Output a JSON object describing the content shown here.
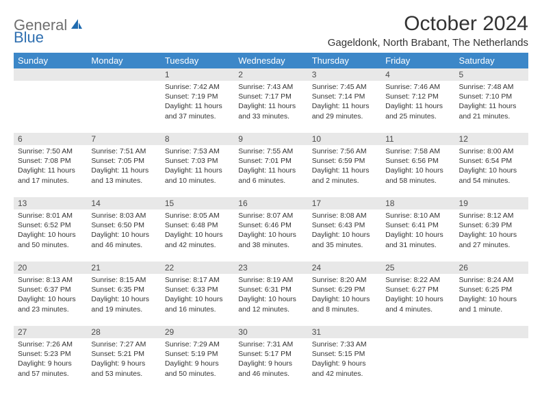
{
  "logo": {
    "general": "General",
    "blue": "Blue",
    "icon_fill": "#1f6bb0"
  },
  "title": "October 2024",
  "location": "Gageldonk, North Brabant, The Netherlands",
  "header_bg": "#3c87c8",
  "header_text_color": "#ffffff",
  "daynum_bg": "#e8e8e8",
  "text_color": "#333333",
  "weekdays": [
    "Sunday",
    "Monday",
    "Tuesday",
    "Wednesday",
    "Thursday",
    "Friday",
    "Saturday"
  ],
  "weeks": [
    [
      null,
      null,
      {
        "n": "1",
        "sunrise": "Sunrise: 7:42 AM",
        "sunset": "Sunset: 7:19 PM",
        "daylight": "Daylight: 11 hours and 37 minutes."
      },
      {
        "n": "2",
        "sunrise": "Sunrise: 7:43 AM",
        "sunset": "Sunset: 7:17 PM",
        "daylight": "Daylight: 11 hours and 33 minutes."
      },
      {
        "n": "3",
        "sunrise": "Sunrise: 7:45 AM",
        "sunset": "Sunset: 7:14 PM",
        "daylight": "Daylight: 11 hours and 29 minutes."
      },
      {
        "n": "4",
        "sunrise": "Sunrise: 7:46 AM",
        "sunset": "Sunset: 7:12 PM",
        "daylight": "Daylight: 11 hours and 25 minutes."
      },
      {
        "n": "5",
        "sunrise": "Sunrise: 7:48 AM",
        "sunset": "Sunset: 7:10 PM",
        "daylight": "Daylight: 11 hours and 21 minutes."
      }
    ],
    [
      {
        "n": "6",
        "sunrise": "Sunrise: 7:50 AM",
        "sunset": "Sunset: 7:08 PM",
        "daylight": "Daylight: 11 hours and 17 minutes."
      },
      {
        "n": "7",
        "sunrise": "Sunrise: 7:51 AM",
        "sunset": "Sunset: 7:05 PM",
        "daylight": "Daylight: 11 hours and 13 minutes."
      },
      {
        "n": "8",
        "sunrise": "Sunrise: 7:53 AM",
        "sunset": "Sunset: 7:03 PM",
        "daylight": "Daylight: 11 hours and 10 minutes."
      },
      {
        "n": "9",
        "sunrise": "Sunrise: 7:55 AM",
        "sunset": "Sunset: 7:01 PM",
        "daylight": "Daylight: 11 hours and 6 minutes."
      },
      {
        "n": "10",
        "sunrise": "Sunrise: 7:56 AM",
        "sunset": "Sunset: 6:59 PM",
        "daylight": "Daylight: 11 hours and 2 minutes."
      },
      {
        "n": "11",
        "sunrise": "Sunrise: 7:58 AM",
        "sunset": "Sunset: 6:56 PM",
        "daylight": "Daylight: 10 hours and 58 minutes."
      },
      {
        "n": "12",
        "sunrise": "Sunrise: 8:00 AM",
        "sunset": "Sunset: 6:54 PM",
        "daylight": "Daylight: 10 hours and 54 minutes."
      }
    ],
    [
      {
        "n": "13",
        "sunrise": "Sunrise: 8:01 AM",
        "sunset": "Sunset: 6:52 PM",
        "daylight": "Daylight: 10 hours and 50 minutes."
      },
      {
        "n": "14",
        "sunrise": "Sunrise: 8:03 AM",
        "sunset": "Sunset: 6:50 PM",
        "daylight": "Daylight: 10 hours and 46 minutes."
      },
      {
        "n": "15",
        "sunrise": "Sunrise: 8:05 AM",
        "sunset": "Sunset: 6:48 PM",
        "daylight": "Daylight: 10 hours and 42 minutes."
      },
      {
        "n": "16",
        "sunrise": "Sunrise: 8:07 AM",
        "sunset": "Sunset: 6:46 PM",
        "daylight": "Daylight: 10 hours and 38 minutes."
      },
      {
        "n": "17",
        "sunrise": "Sunrise: 8:08 AM",
        "sunset": "Sunset: 6:43 PM",
        "daylight": "Daylight: 10 hours and 35 minutes."
      },
      {
        "n": "18",
        "sunrise": "Sunrise: 8:10 AM",
        "sunset": "Sunset: 6:41 PM",
        "daylight": "Daylight: 10 hours and 31 minutes."
      },
      {
        "n": "19",
        "sunrise": "Sunrise: 8:12 AM",
        "sunset": "Sunset: 6:39 PM",
        "daylight": "Daylight: 10 hours and 27 minutes."
      }
    ],
    [
      {
        "n": "20",
        "sunrise": "Sunrise: 8:13 AM",
        "sunset": "Sunset: 6:37 PM",
        "daylight": "Daylight: 10 hours and 23 minutes."
      },
      {
        "n": "21",
        "sunrise": "Sunrise: 8:15 AM",
        "sunset": "Sunset: 6:35 PM",
        "daylight": "Daylight: 10 hours and 19 minutes."
      },
      {
        "n": "22",
        "sunrise": "Sunrise: 8:17 AM",
        "sunset": "Sunset: 6:33 PM",
        "daylight": "Daylight: 10 hours and 16 minutes."
      },
      {
        "n": "23",
        "sunrise": "Sunrise: 8:19 AM",
        "sunset": "Sunset: 6:31 PM",
        "daylight": "Daylight: 10 hours and 12 minutes."
      },
      {
        "n": "24",
        "sunrise": "Sunrise: 8:20 AM",
        "sunset": "Sunset: 6:29 PM",
        "daylight": "Daylight: 10 hours and 8 minutes."
      },
      {
        "n": "25",
        "sunrise": "Sunrise: 8:22 AM",
        "sunset": "Sunset: 6:27 PM",
        "daylight": "Daylight: 10 hours and 4 minutes."
      },
      {
        "n": "26",
        "sunrise": "Sunrise: 8:24 AM",
        "sunset": "Sunset: 6:25 PM",
        "daylight": "Daylight: 10 hours and 1 minute."
      }
    ],
    [
      {
        "n": "27",
        "sunrise": "Sunrise: 7:26 AM",
        "sunset": "Sunset: 5:23 PM",
        "daylight": "Daylight: 9 hours and 57 minutes."
      },
      {
        "n": "28",
        "sunrise": "Sunrise: 7:27 AM",
        "sunset": "Sunset: 5:21 PM",
        "daylight": "Daylight: 9 hours and 53 minutes."
      },
      {
        "n": "29",
        "sunrise": "Sunrise: 7:29 AM",
        "sunset": "Sunset: 5:19 PM",
        "daylight": "Daylight: 9 hours and 50 minutes."
      },
      {
        "n": "30",
        "sunrise": "Sunrise: 7:31 AM",
        "sunset": "Sunset: 5:17 PM",
        "daylight": "Daylight: 9 hours and 46 minutes."
      },
      {
        "n": "31",
        "sunrise": "Sunrise: 7:33 AM",
        "sunset": "Sunset: 5:15 PM",
        "daylight": "Daylight: 9 hours and 42 minutes."
      },
      null,
      null
    ]
  ]
}
